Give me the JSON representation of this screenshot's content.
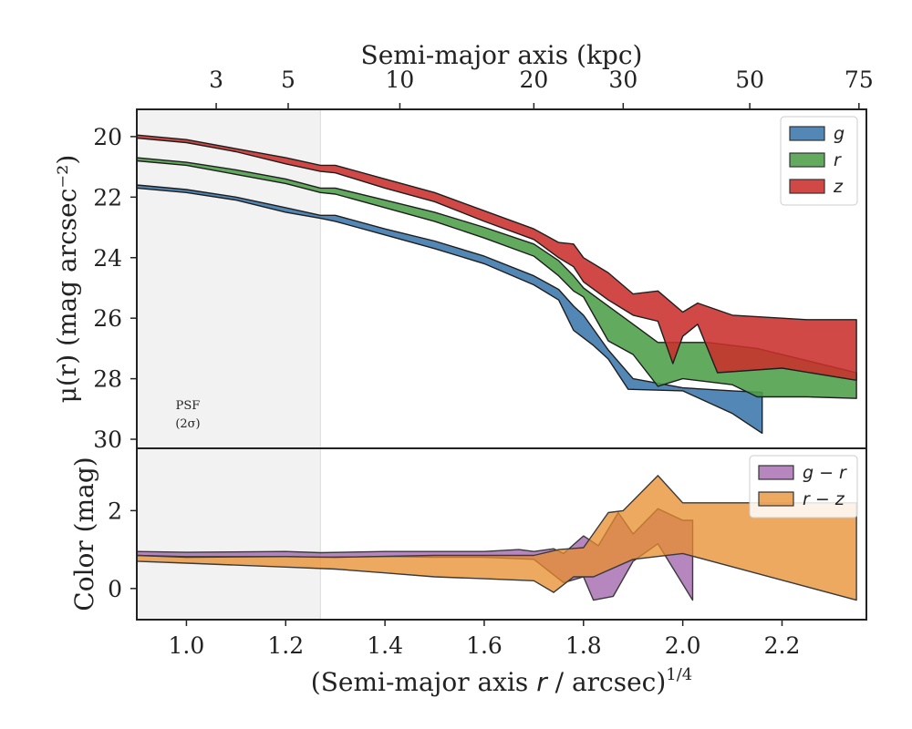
{
  "chart_data": [
    {
      "type": "area",
      "panel": "surface-brightness",
      "top_xlabel": "Semi-major axis (kpc)",
      "top_ticks": [
        3,
        5,
        10,
        20,
        30,
        50,
        75
      ],
      "top_tick_positions": [
        1.06,
        1.205,
        1.43,
        1.7,
        1.88,
        2.135,
        2.355
      ],
      "ylabel": "μ(r) (mag arcsec⁻²)",
      "ylim": [
        30.3,
        19.1
      ],
      "yticks": [
        20,
        22,
        24,
        26,
        28,
        30
      ],
      "psf_label": [
        "PSF",
        "(2σ)"
      ],
      "psf_region_x": [
        0.9,
        1.27
      ],
      "legend": "top-right",
      "series": [
        {
          "name": "g",
          "color": "#3a76ac",
          "upper": [
            [
              0.9,
              21.6
            ],
            [
              1.0,
              21.75
            ],
            [
              1.1,
              22.0
            ],
            [
              1.2,
              22.35
            ],
            [
              1.27,
              22.6
            ],
            [
              1.3,
              22.6
            ],
            [
              1.4,
              23.05
            ],
            [
              1.5,
              23.45
            ],
            [
              1.6,
              23.95
            ],
            [
              1.7,
              24.6
            ],
            [
              1.75,
              25.05
            ],
            [
              1.78,
              25.6
            ],
            [
              1.8,
              25.9
            ],
            [
              1.85,
              27.05
            ],
            [
              1.9,
              28.0
            ],
            [
              2.0,
              28.3
            ],
            [
              2.1,
              28.4
            ],
            [
              2.16,
              28.45
            ]
          ],
          "lower": [
            [
              0.9,
              21.7
            ],
            [
              1.0,
              21.85
            ],
            [
              1.1,
              22.1
            ],
            [
              1.2,
              22.5
            ],
            [
              1.27,
              22.7
            ],
            [
              1.3,
              22.8
            ],
            [
              1.4,
              23.25
            ],
            [
              1.5,
              23.7
            ],
            [
              1.6,
              24.2
            ],
            [
              1.7,
              24.9
            ],
            [
              1.75,
              25.4
            ],
            [
              1.78,
              26.4
            ],
            [
              1.82,
              26.9
            ],
            [
              1.85,
              27.35
            ],
            [
              1.89,
              28.35
            ],
            [
              2.0,
              28.4
            ],
            [
              2.1,
              29.15
            ],
            [
              2.16,
              29.8
            ]
          ]
        },
        {
          "name": "r",
          "color": "#4c9f48",
          "upper": [
            [
              0.9,
              20.7
            ],
            [
              1.0,
              20.85
            ],
            [
              1.1,
              21.1
            ],
            [
              1.2,
              21.4
            ],
            [
              1.27,
              21.7
            ],
            [
              1.3,
              21.7
            ],
            [
              1.4,
              22.1
            ],
            [
              1.5,
              22.5
            ],
            [
              1.6,
              23.0
            ],
            [
              1.7,
              23.55
            ],
            [
              1.75,
              24.1
            ],
            [
              1.78,
              24.6
            ],
            [
              1.8,
              25.0
            ],
            [
              1.85,
              25.6
            ],
            [
              1.9,
              26.2
            ],
            [
              1.95,
              26.8
            ],
            [
              2.05,
              26.8
            ],
            [
              2.15,
              27.0
            ],
            [
              2.25,
              27.4
            ],
            [
              2.35,
              27.8
            ]
          ],
          "lower": [
            [
              0.9,
              20.8
            ],
            [
              1.0,
              20.95
            ],
            [
              1.1,
              21.25
            ],
            [
              1.2,
              21.55
            ],
            [
              1.27,
              21.85
            ],
            [
              1.3,
              21.9
            ],
            [
              1.4,
              22.35
            ],
            [
              1.5,
              22.8
            ],
            [
              1.6,
              23.35
            ],
            [
              1.7,
              23.95
            ],
            [
              1.75,
              24.6
            ],
            [
              1.78,
              25.1
            ],
            [
              1.8,
              25.3
            ],
            [
              1.85,
              26.75
            ],
            [
              1.9,
              27.2
            ],
            [
              1.95,
              28.25
            ],
            [
              2.0,
              28.0
            ],
            [
              2.1,
              28.2
            ],
            [
              2.15,
              28.6
            ],
            [
              2.25,
              28.6
            ],
            [
              2.35,
              28.65
            ]
          ]
        },
        {
          "name": "z",
          "color": "#c9302c",
          "upper": [
            [
              0.9,
              19.95
            ],
            [
              1.0,
              20.1
            ],
            [
              1.1,
              20.4
            ],
            [
              1.2,
              20.7
            ],
            [
              1.27,
              20.95
            ],
            [
              1.3,
              20.95
            ],
            [
              1.4,
              21.4
            ],
            [
              1.5,
              21.85
            ],
            [
              1.6,
              22.45
            ],
            [
              1.7,
              23.05
            ],
            [
              1.75,
              23.5
            ],
            [
              1.78,
              23.55
            ],
            [
              1.8,
              24.0
            ],
            [
              1.85,
              24.5
            ],
            [
              1.9,
              25.2
            ],
            [
              1.95,
              25.1
            ],
            [
              2.0,
              25.8
            ],
            [
              2.03,
              25.5
            ],
            [
              2.1,
              25.9
            ],
            [
              2.25,
              26.05
            ],
            [
              2.35,
              26.05
            ]
          ],
          "lower": [
            [
              0.9,
              20.05
            ],
            [
              1.0,
              20.2
            ],
            [
              1.1,
              20.5
            ],
            [
              1.2,
              20.9
            ],
            [
              1.27,
              21.15
            ],
            [
              1.3,
              21.2
            ],
            [
              1.4,
              21.7
            ],
            [
              1.5,
              22.15
            ],
            [
              1.6,
              22.8
            ],
            [
              1.7,
              23.4
            ],
            [
              1.75,
              24.0
            ],
            [
              1.78,
              24.3
            ],
            [
              1.8,
              24.8
            ],
            [
              1.85,
              25.4
            ],
            [
              1.9,
              25.9
            ],
            [
              1.95,
              26.1
            ],
            [
              1.98,
              27.5
            ],
            [
              2.0,
              26.6
            ],
            [
              2.03,
              26.2
            ],
            [
              2.07,
              27.8
            ],
            [
              2.2,
              27.65
            ],
            [
              2.35,
              28.05
            ]
          ]
        }
      ]
    },
    {
      "type": "area",
      "panel": "color",
      "xlabel": "(Semi-major axis r / arcsec)^1/4",
      "xlim": [
        0.9,
        2.37
      ],
      "xticks": [
        1.0,
        1.2,
        1.4,
        1.6,
        1.8,
        2.0,
        2.2
      ],
      "ylabel": "Color (mag)",
      "ylim": [
        -0.8,
        3.6
      ],
      "yticks": [
        0,
        2
      ],
      "legend": "top-right",
      "series": [
        {
          "name": "g − r",
          "color": "#9e5ea8",
          "upper": [
            [
              0.9,
              0.95
            ],
            [
              1.0,
              0.93
            ],
            [
              1.2,
              0.95
            ],
            [
              1.27,
              0.92
            ],
            [
              1.4,
              0.95
            ],
            [
              1.6,
              0.95
            ],
            [
              1.67,
              1.0
            ],
            [
              1.7,
              0.95
            ],
            [
              1.74,
              1.02
            ],
            [
              1.76,
              0.9
            ],
            [
              1.8,
              1.35
            ],
            [
              1.83,
              1.1
            ],
            [
              1.87,
              1.95
            ],
            [
              1.9,
              1.4
            ],
            [
              1.95,
              2.05
            ],
            [
              2.0,
              1.75
            ],
            [
              2.02,
              1.75
            ]
          ],
          "lower": [
            [
              0.9,
              0.85
            ],
            [
              1.0,
              0.82
            ],
            [
              1.2,
              0.82
            ],
            [
              1.27,
              0.8
            ],
            [
              1.4,
              0.82
            ],
            [
              1.5,
              0.8
            ],
            [
              1.6,
              0.8
            ],
            [
              1.7,
              0.75
            ],
            [
              1.76,
              0.15
            ],
            [
              1.8,
              0.3
            ],
            [
              1.82,
              -0.3
            ],
            [
              1.86,
              -0.2
            ],
            [
              1.9,
              0.7
            ],
            [
              1.95,
              1.15
            ],
            [
              2.02,
              -0.3
            ]
          ]
        },
        {
          "name": "r − z",
          "color": "#e88c2c",
          "upper": [
            [
              0.9,
              0.85
            ],
            [
              1.0,
              0.8
            ],
            [
              1.2,
              0.82
            ],
            [
              1.3,
              0.8
            ],
            [
              1.5,
              0.85
            ],
            [
              1.6,
              0.85
            ],
            [
              1.7,
              0.85
            ],
            [
              1.75,
              1.0
            ],
            [
              1.8,
              1.05
            ],
            [
              1.85,
              1.95
            ],
            [
              1.88,
              2.0
            ],
            [
              1.95,
              2.9
            ],
            [
              2.0,
              2.2
            ],
            [
              2.35,
              2.2
            ]
          ],
          "lower": [
            [
              0.9,
              0.7
            ],
            [
              1.0,
              0.65
            ],
            [
              1.2,
              0.55
            ],
            [
              1.3,
              0.5
            ],
            [
              1.4,
              0.4
            ],
            [
              1.5,
              0.3
            ],
            [
              1.6,
              0.25
            ],
            [
              1.7,
              0.2
            ],
            [
              1.74,
              -0.1
            ],
            [
              1.78,
              0.3
            ],
            [
              1.82,
              0.3
            ],
            [
              1.9,
              0.75
            ],
            [
              2.0,
              0.9
            ],
            [
              2.35,
              -0.3
            ]
          ]
        }
      ]
    }
  ]
}
